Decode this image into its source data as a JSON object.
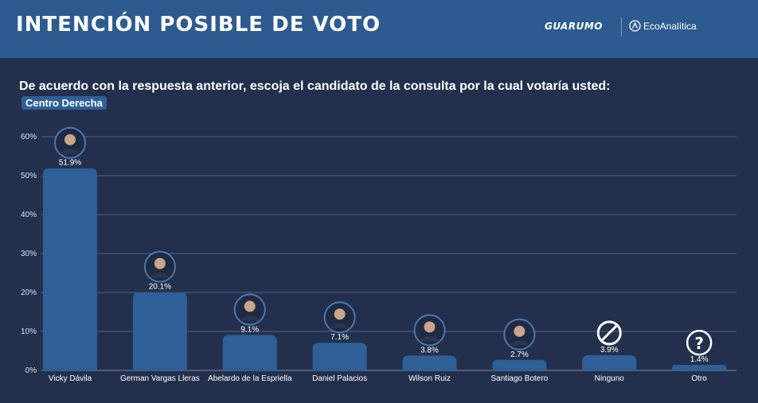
{
  "header": {
    "title": "INTENCIÓN POSIBLE DE VOTO",
    "logo_1": "GUARUMO",
    "logo_2": "EcoAnalítica"
  },
  "question": "De acuerdo con  la respuesta anterior, escoja el candidato de la consulta por la cual votaría usted:",
  "badge": "Centro Derecha",
  "colors": {
    "background": "#23304d",
    "header": "#2d5b8f",
    "bar": "#2e5f96"
  },
  "chart_data": {
    "type": "bar",
    "categories": [
      "Vicky Dávila",
      "German Vargas Lleras",
      "Abelardo de la Espriella",
      "Daniel Palacios",
      "Wilson Ruiz",
      "Santiago Botero",
      "Ninguno",
      "Otro"
    ],
    "values": [
      51.9,
      20.1,
      9.1,
      7.1,
      3.8,
      2.7,
      3.9,
      1.4
    ],
    "value_labels": [
      "51.9%",
      "20.1%",
      "9.1%",
      "7.1%",
      "3.8%",
      "2.7%",
      "3.9%",
      "1.4%"
    ],
    "yticks": [
      "0%",
      "10%",
      "20%",
      "30%",
      "40%",
      "50%",
      "60%"
    ],
    "ylim": [
      0,
      60
    ],
    "grid": true,
    "icons": [
      "candidate-photo",
      "candidate-photo",
      "candidate-photo",
      "candidate-photo",
      "candidate-photo",
      "candidate-photo",
      "none-icon",
      "question-icon"
    ]
  }
}
